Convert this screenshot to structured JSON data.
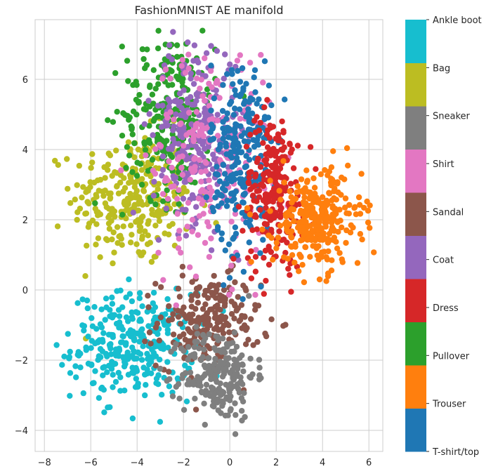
{
  "chart_data": {
    "type": "scatter",
    "title": "FashionMNIST AE manifold",
    "xlabel": "",
    "ylabel": "",
    "xlim": [
      -8.4,
      6.6
    ],
    "ylim": [
      -4.6,
      7.7
    ],
    "xticks": [
      -8,
      -6,
      -4,
      -2,
      0,
      2,
      4,
      6
    ],
    "yticks": [
      -4,
      -2,
      0,
      2,
      4,
      6
    ],
    "grid": true,
    "colorbar": {
      "placement": "right",
      "labels": [
        "T-shirt/top",
        "Trouser",
        "Pullover",
        "Dress",
        "Coat",
        "Sandal",
        "Shirt",
        "Sneaker",
        "Bag",
        "Ankle boot"
      ]
    },
    "classes": [
      {
        "name": "T-shirt/top",
        "color": "#1f77b4",
        "clusters": [
          {
            "cx": 0.5,
            "cy": 3.8,
            "sx": 0.65,
            "sy": 1.4,
            "n": 260
          }
        ]
      },
      {
        "name": "Trouser",
        "color": "#ff7f0e",
        "clusters": [
          {
            "cx": 3.8,
            "cy": 2.0,
            "sx": 0.95,
            "sy": 0.7,
            "n": 300
          }
        ]
      },
      {
        "name": "Pullover",
        "color": "#2ca02c",
        "clusters": [
          {
            "cx": -2.6,
            "cy": 5.0,
            "sx": 1.0,
            "sy": 1.2,
            "n": 260
          }
        ]
      },
      {
        "name": "Dress",
        "color": "#d62728",
        "clusters": [
          {
            "cx": 1.9,
            "cy": 2.8,
            "sx": 0.65,
            "sy": 1.1,
            "n": 240
          }
        ]
      },
      {
        "name": "Coat",
        "color": "#9467bd",
        "clusters": [
          {
            "cx": -1.5,
            "cy": 4.6,
            "sx": 0.9,
            "sy": 1.3,
            "n": 260
          }
        ]
      },
      {
        "name": "Sandal",
        "color": "#8c564b",
        "clusters": [
          {
            "cx": -0.9,
            "cy": -0.9,
            "sx": 1.1,
            "sy": 0.65,
            "n": 220
          }
        ]
      },
      {
        "name": "Shirt",
        "color": "#e377c2",
        "clusters": [
          {
            "cx": -0.8,
            "cy": 3.8,
            "sx": 1.3,
            "sy": 1.6,
            "n": 220
          }
        ]
      },
      {
        "name": "Sneaker",
        "color": "#7f7f7f",
        "clusters": [
          {
            "cx": -0.5,
            "cy": -2.4,
            "sx": 0.8,
            "sy": 0.65,
            "n": 220
          }
        ]
      },
      {
        "name": "Bag",
        "color": "#bcbd22",
        "clusters": [
          {
            "cx": -4.2,
            "cy": 2.6,
            "sx": 1.3,
            "sy": 0.95,
            "n": 280
          }
        ]
      },
      {
        "name": "Ankle boot",
        "color": "#17becf",
        "clusters": [
          {
            "cx": -4.2,
            "cy": -1.6,
            "sx": 1.3,
            "sy": 0.75,
            "n": 300
          }
        ]
      }
    ]
  }
}
